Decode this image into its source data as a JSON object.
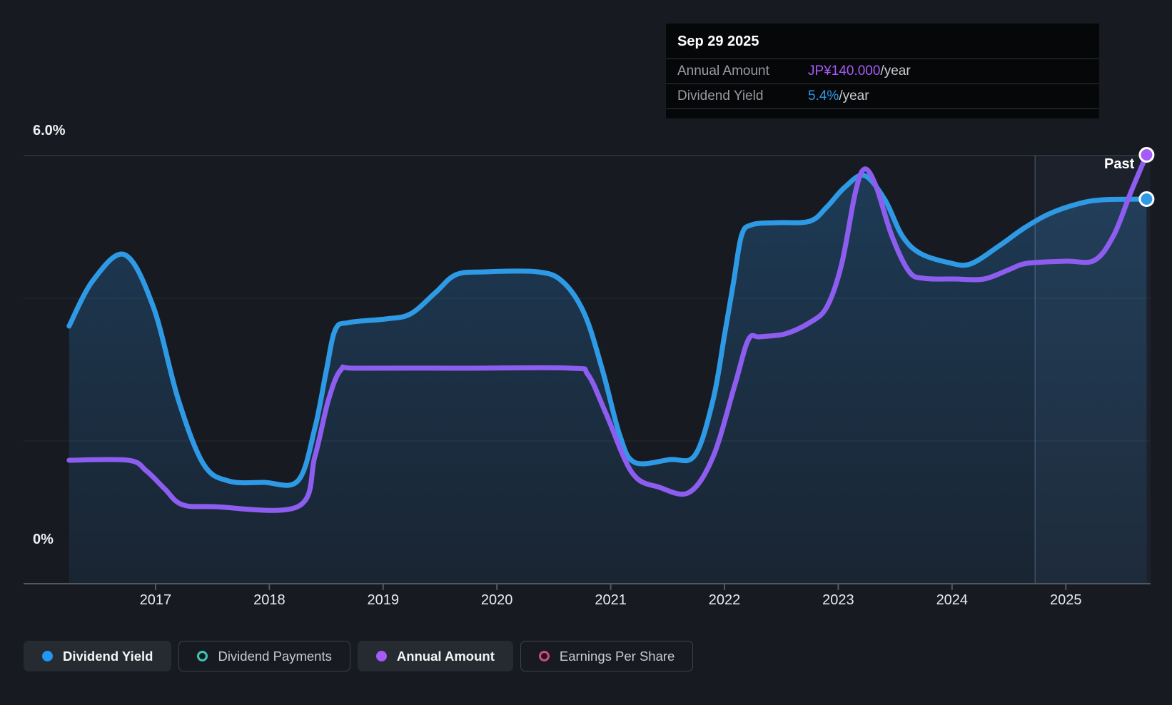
{
  "past_label": "Past",
  "tooltip": {
    "date": "Sep 29 2025",
    "rows": [
      {
        "label": "Annual Amount",
        "value": "JP¥140.000",
        "suffix": "/year",
        "color": "#a55bf7"
      },
      {
        "label": "Dividend Yield",
        "value": "5.4%",
        "suffix": "/year",
        "color": "#2e9ae6"
      }
    ]
  },
  "legend": [
    {
      "label": "Dividend Yield",
      "color": "#2196f3",
      "style": "filled",
      "active": true
    },
    {
      "label": "Dividend Payments",
      "color": "#3fc6b2",
      "style": "ring",
      "active": false
    },
    {
      "label": "Annual Amount",
      "color": "#a55bf7",
      "style": "filled",
      "active": true
    },
    {
      "label": "Earnings Per Share",
      "color": "#d6487f",
      "style": "ring",
      "active": false
    }
  ],
  "colors": {
    "background": "#171a21",
    "grid_major": "#40454c",
    "grid_minor": "#262b31",
    "axis": "#53585e",
    "fill_top": "rgba(44,130,201,0.32)",
    "fill_bottom": "rgba(44,130,201,0.10)",
    "past_overlay": "rgba(125,170,215,0.055)",
    "past_divider": "rgba(150,185,220,0.28)",
    "dot_ring": "#ffffff"
  },
  "chart_data": {
    "type": "line",
    "title": "Dividend yield and annual amount history (Sep 29 2025)",
    "x_ticks": [
      "2017",
      "2018",
      "2019",
      "2020",
      "2021",
      "2022",
      "2023",
      "2024",
      "2025"
    ],
    "y_ticks": [
      {
        "label": "6.0%",
        "value": 6.0
      },
      {
        "label": "0%",
        "value": 0.0
      }
    ],
    "xlim": [
      2016.235,
      2025.745
    ],
    "ylim": [
      0,
      6
    ],
    "grid_values": [
      6,
      4,
      2
    ],
    "legend_position": "bottom",
    "past_region_start": 2024.73,
    "series": [
      {
        "name": "Dividend Yield",
        "unit": "% per year",
        "color": "#2e9ae6",
        "fill": true,
        "end_dot": true,
        "latest": {
          "x": 2025.74,
          "value": 5.4
        },
        "points": [
          [
            2016.24,
            3.61
          ],
          [
            2016.45,
            4.25
          ],
          [
            2016.73,
            4.61
          ],
          [
            2016.98,
            3.88
          ],
          [
            2017.2,
            2.58
          ],
          [
            2017.42,
            1.68
          ],
          [
            2017.64,
            1.44
          ],
          [
            2017.95,
            1.42
          ],
          [
            2018.25,
            1.44
          ],
          [
            2018.4,
            2.18
          ],
          [
            2018.5,
            2.98
          ],
          [
            2018.58,
            3.56
          ],
          [
            2018.7,
            3.66
          ],
          [
            2019.02,
            3.71
          ],
          [
            2019.24,
            3.78
          ],
          [
            2019.46,
            4.08
          ],
          [
            2019.64,
            4.33
          ],
          [
            2019.89,
            4.37
          ],
          [
            2020.36,
            4.37
          ],
          [
            2020.58,
            4.23
          ],
          [
            2020.77,
            3.78
          ],
          [
            2020.93,
            2.98
          ],
          [
            2021.08,
            2.08
          ],
          [
            2021.21,
            1.7
          ],
          [
            2021.52,
            1.74
          ],
          [
            2021.74,
            1.8
          ],
          [
            2021.9,
            2.58
          ],
          [
            2022.0,
            3.48
          ],
          [
            2022.08,
            4.23
          ],
          [
            2022.15,
            4.88
          ],
          [
            2022.24,
            5.03
          ],
          [
            2022.46,
            5.06
          ],
          [
            2022.75,
            5.08
          ],
          [
            2022.9,
            5.28
          ],
          [
            2023.06,
            5.56
          ],
          [
            2023.23,
            5.72
          ],
          [
            2023.41,
            5.38
          ],
          [
            2023.56,
            4.88
          ],
          [
            2023.72,
            4.63
          ],
          [
            2023.97,
            4.5
          ],
          [
            2024.16,
            4.48
          ],
          [
            2024.41,
            4.73
          ],
          [
            2024.63,
            4.98
          ],
          [
            2024.85,
            5.18
          ],
          [
            2025.1,
            5.32
          ],
          [
            2025.32,
            5.38
          ],
          [
            2025.71,
            5.39
          ]
        ]
      },
      {
        "name": "Annual Amount",
        "unit": "JP¥ per year (hidden scale; latest JP¥140.000/year, values below are plot positions on the yield axis)",
        "color": "#8d5df0",
        "dot_color": "#a55bf7",
        "fill": false,
        "end_dot": true,
        "latest": {
          "x": 2025.74,
          "value": "JP¥140.000"
        },
        "points": [
          [
            2016.24,
            1.73
          ],
          [
            2016.76,
            1.73
          ],
          [
            2016.92,
            1.58
          ],
          [
            2017.08,
            1.33
          ],
          [
            2017.23,
            1.11
          ],
          [
            2017.51,
            1.08
          ],
          [
            2018.25,
            1.08
          ],
          [
            2018.4,
            1.78
          ],
          [
            2018.52,
            2.58
          ],
          [
            2018.63,
            3.0
          ],
          [
            2018.77,
            3.02
          ],
          [
            2019.71,
            3.02
          ],
          [
            2020.65,
            3.02
          ],
          [
            2020.8,
            2.93
          ],
          [
            2020.96,
            2.38
          ],
          [
            2021.19,
            1.55
          ],
          [
            2021.43,
            1.35
          ],
          [
            2021.69,
            1.28
          ],
          [
            2021.9,
            1.78
          ],
          [
            2022.09,
            2.78
          ],
          [
            2022.21,
            3.42
          ],
          [
            2022.31,
            3.46
          ],
          [
            2022.53,
            3.5
          ],
          [
            2022.75,
            3.66
          ],
          [
            2022.9,
            3.88
          ],
          [
            2023.03,
            4.48
          ],
          [
            2023.15,
            5.48
          ],
          [
            2023.23,
            5.81
          ],
          [
            2023.33,
            5.58
          ],
          [
            2023.47,
            4.88
          ],
          [
            2023.62,
            4.38
          ],
          [
            2023.75,
            4.28
          ],
          [
            2024.03,
            4.27
          ],
          [
            2024.28,
            4.27
          ],
          [
            2024.5,
            4.4
          ],
          [
            2024.66,
            4.49
          ],
          [
            2025.0,
            4.52
          ],
          [
            2025.25,
            4.53
          ],
          [
            2025.42,
            4.88
          ],
          [
            2025.57,
            5.48
          ],
          [
            2025.71,
            6.01
          ]
        ]
      }
    ]
  }
}
